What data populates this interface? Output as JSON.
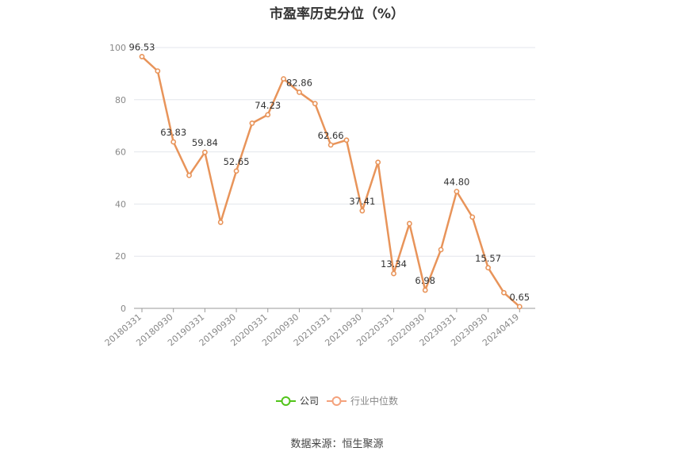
{
  "title": "市盈率历史分位（%）",
  "source": "数据来源：恒生聚源",
  "legend": [
    {
      "name": "公司",
      "color": "#52c41a"
    },
    {
      "name": "行业中位数",
      "color": "#f4a27c"
    }
  ],
  "chart_data": {
    "type": "line",
    "title": "市盈率历史分位（%）",
    "x_tick_labels": [
      "20180331",
      "20180930",
      "20190331",
      "20190930",
      "20200331",
      "20200930",
      "20210331",
      "20210930",
      "20220331",
      "20220930",
      "20230331",
      "20230930",
      "20240419"
    ],
    "x": [
      "20180331",
      "20180630",
      "20180930",
      "20181231",
      "20190331",
      "20190630",
      "20190930",
      "20191231",
      "20200331",
      "20200630",
      "20200930",
      "20201231",
      "20210331",
      "20210630",
      "20210930",
      "20211231",
      "20220331",
      "20220630",
      "20220930",
      "20221231",
      "20230331",
      "20230630",
      "20230930",
      "20231231",
      "20240419"
    ],
    "series": [
      {
        "name": "行业中位数",
        "color": "#e8945a",
        "values": [
          96.53,
          91,
          63.83,
          51,
          59.84,
          33,
          52.65,
          71,
          74.23,
          88,
          82.86,
          78.5,
          62.66,
          64.5,
          37.41,
          56,
          13.34,
          32.5,
          6.98,
          22.5,
          44.8,
          35,
          15.57,
          6,
          0.65
        ],
        "labels": [
          "96.53",
          null,
          "63.83",
          null,
          "59.84",
          null,
          "52.65",
          null,
          "74.23",
          null,
          "82.86",
          null,
          "62.66",
          null,
          "37.41",
          null,
          "13.34",
          null,
          "6.98",
          null,
          "44.80",
          null,
          "15.57",
          null,
          "0.65"
        ]
      }
    ],
    "y_ticks": [
      "0",
      "20",
      "40",
      "60",
      "80",
      "100"
    ],
    "ylim": [
      0,
      100
    ],
    "grid": true,
    "legend_position": "bottom-center"
  }
}
